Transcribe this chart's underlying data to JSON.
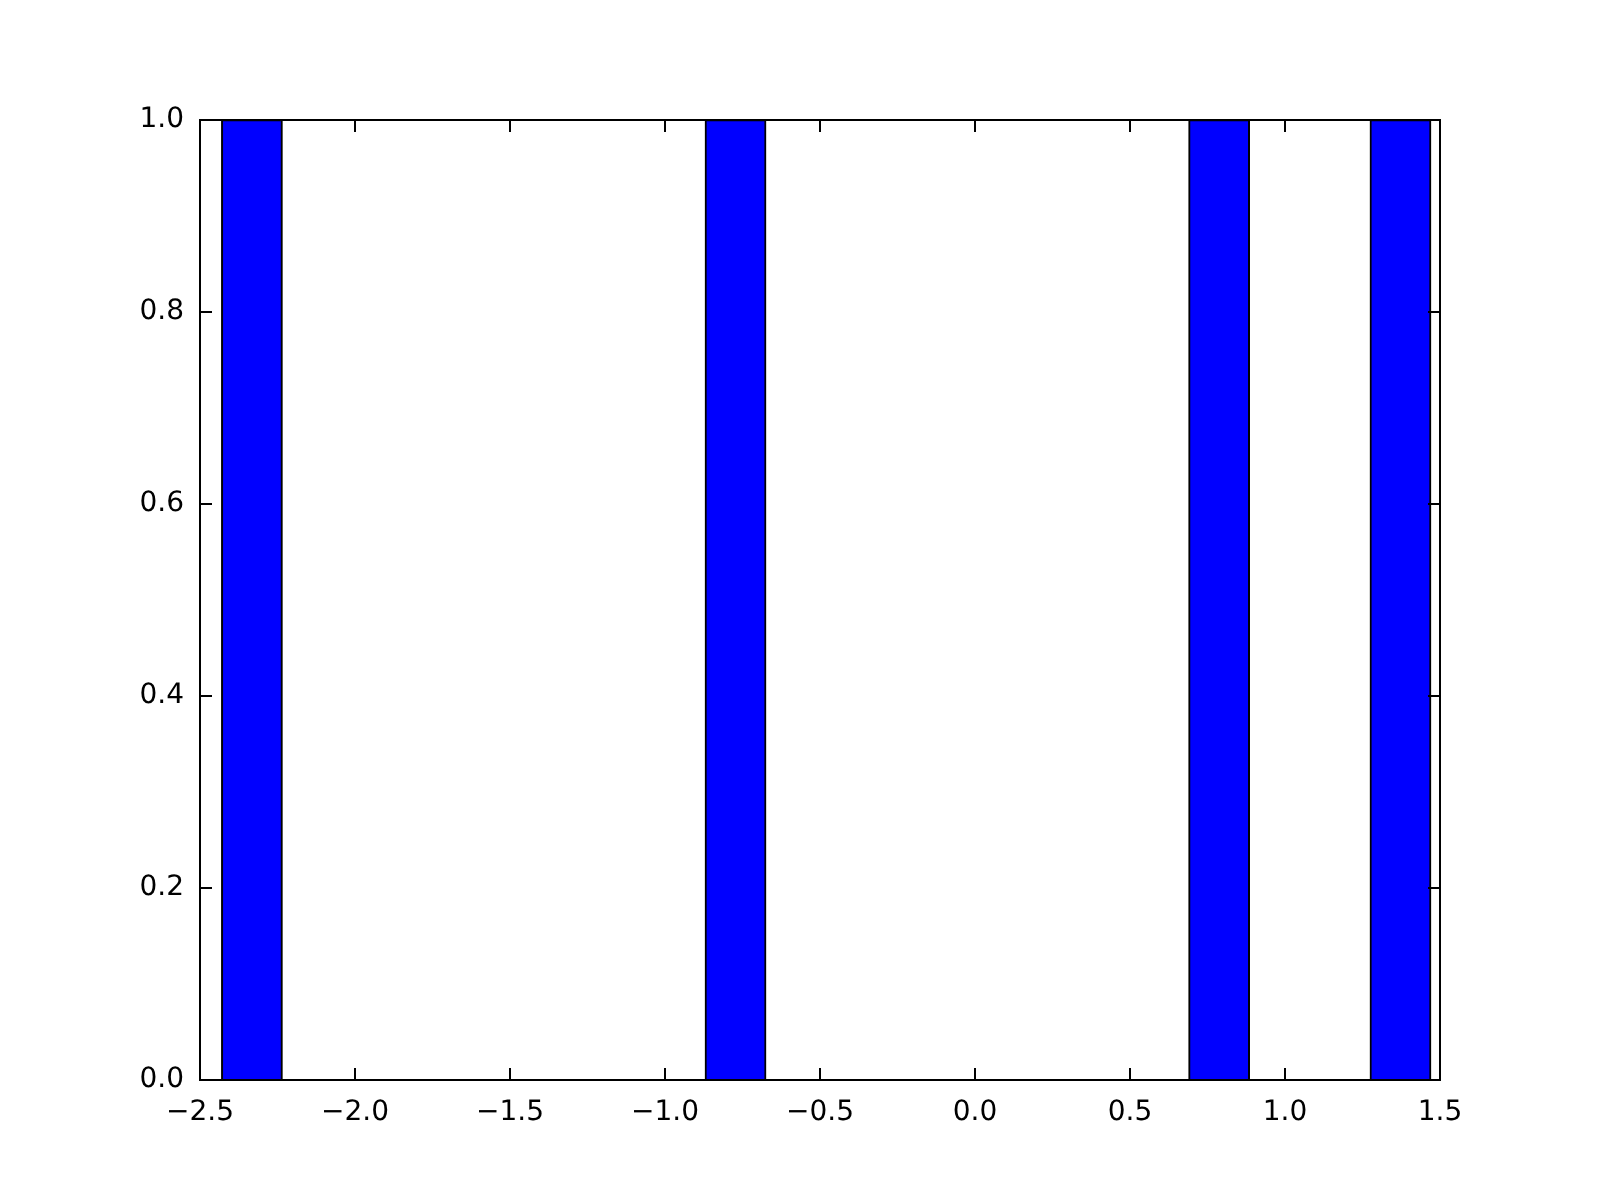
{
  "chart_data": {
    "type": "histogram",
    "bins": [
      -2.43,
      -2.235,
      -2.04,
      -1.845,
      -1.65,
      -1.455,
      -1.26,
      -1.065,
      -0.87,
      -0.675,
      -0.48,
      -0.285,
      -0.09,
      0.105,
      0.3,
      0.495,
      0.69,
      0.885,
      1.08,
      1.275,
      1.47
    ],
    "values": [
      1,
      0,
      0,
      0,
      0,
      0,
      0,
      0,
      1,
      0,
      0,
      0,
      0,
      0,
      0,
      0,
      1,
      0,
      0,
      1
    ],
    "color": "#0000ff",
    "xlim": [
      -2.5,
      1.5
    ],
    "xticks": [
      {
        "value": -2.5,
        "label": "−2.5"
      },
      {
        "value": -2,
        "label": "−2.0"
      },
      {
        "value": -1.5,
        "label": "−1.5"
      },
      {
        "value": -1,
        "label": "−1.0"
      },
      {
        "value": -0.5,
        "label": "−0.5"
      },
      {
        "value": 0,
        "label": "0.0"
      },
      {
        "value": 0.5,
        "label": "0.5"
      },
      {
        "value": 1,
        "label": "1.0"
      },
      {
        "value": 1.5,
        "label": "1.5"
      }
    ],
    "ylim": [
      0,
      1
    ],
    "yticks": [
      {
        "value": 0,
        "label": "0.0"
      },
      {
        "value": 0.2,
        "label": "0.2"
      },
      {
        "value": 0.4,
        "label": "0.4"
      },
      {
        "value": 0.6,
        "label": "0.6"
      },
      {
        "value": 0.8,
        "label": "0.8"
      },
      {
        "value": 1,
        "label": "1.0"
      }
    ],
    "grid": false
  }
}
